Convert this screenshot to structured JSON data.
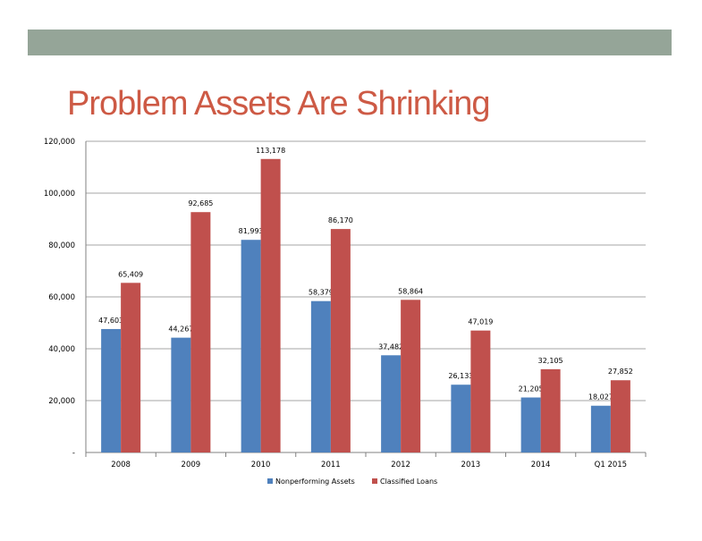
{
  "slide": {
    "title": "Problem Assets Are Shrinking",
    "title_color": "#cd5a45",
    "band_color": "#95a598"
  },
  "chart_data": {
    "type": "bar",
    "title": "",
    "xlabel": "",
    "ylabel": "",
    "categories": [
      "2008",
      "2009",
      "2010",
      "2011",
      "2012",
      "2013",
      "2014",
      "Q1 2015"
    ],
    "series": [
      {
        "name": "Nonperforming Assets",
        "color": "#4f81bd",
        "values": [
          47603,
          44267,
          81993,
          58379,
          37482,
          26133,
          21205,
          18027
        ],
        "labels": [
          "47,603",
          "44,267",
          "81,993",
          "58,379",
          "37,482",
          "26,133",
          "21,205",
          "18,027"
        ]
      },
      {
        "name": "Classified Loans",
        "color": "#c0504d",
        "values": [
          65409,
          92685,
          113178,
          86170,
          58864,
          47019,
          32105,
          27852
        ],
        "labels": [
          "65,409",
          "92,685",
          "113,178",
          "86,170",
          "58,864",
          "47,019",
          "32,105",
          "27,852"
        ]
      }
    ],
    "ylim": [
      0,
      120000
    ],
    "yticks": [
      {
        "value": 0,
        "label": "-"
      },
      {
        "value": 20000,
        "label": "20,000"
      },
      {
        "value": 40000,
        "label": "40,000"
      },
      {
        "value": 60000,
        "label": "60,000"
      },
      {
        "value": 80000,
        "label": "80,000"
      },
      {
        "value": 100000,
        "label": "100,000"
      },
      {
        "value": 120000,
        "label": "120,000"
      }
    ],
    "grid": true,
    "legend": "bottom"
  }
}
